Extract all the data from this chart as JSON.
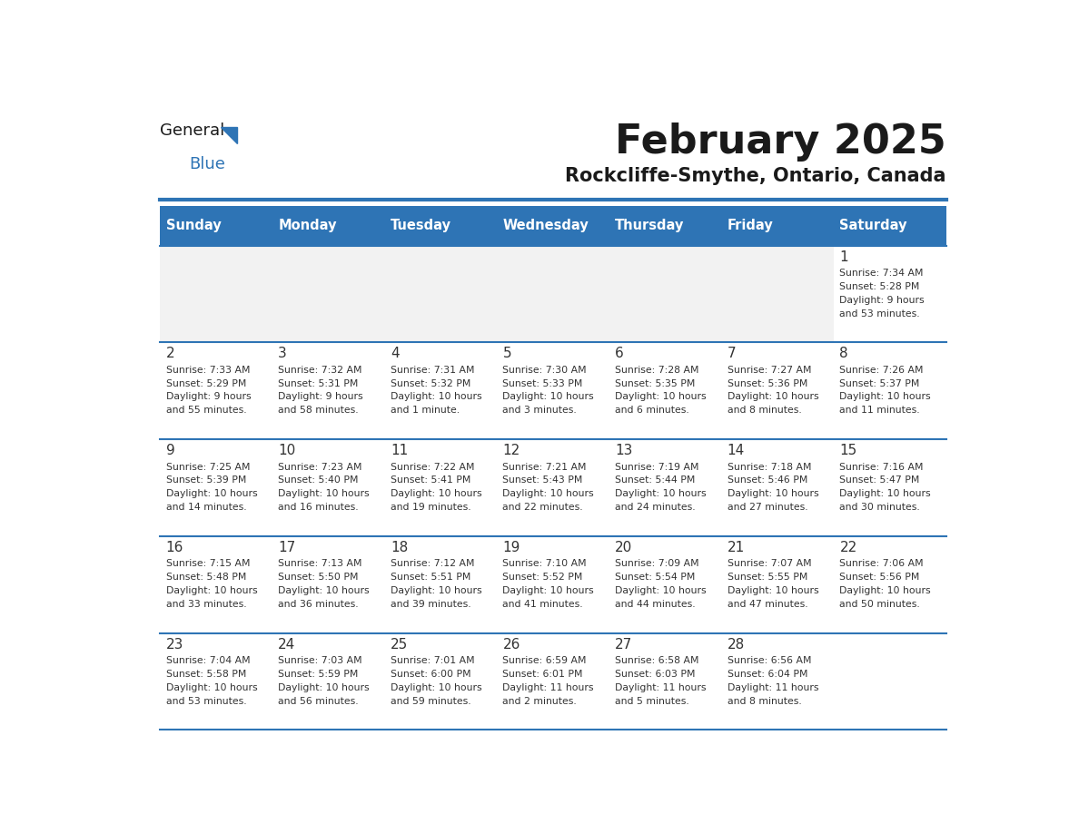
{
  "title": "February 2025",
  "subtitle": "Rockcliffe-Smythe, Ontario, Canada",
  "header_bg": "#2E74B5",
  "header_text": "#FFFFFF",
  "day_headers": [
    "Sunday",
    "Monday",
    "Tuesday",
    "Wednesday",
    "Thursday",
    "Friday",
    "Saturday"
  ],
  "cell_bg_empty": "#F2F2F2",
  "cell_bg_normal": "#FFFFFF",
  "grid_line_color": "#2E74B5",
  "text_color": "#333333",
  "logo_general_color": "#1a1a1a",
  "logo_blue_color": "#2E74B5",
  "calendar_data": [
    [
      {
        "day": null
      },
      {
        "day": null
      },
      {
        "day": null
      },
      {
        "day": null
      },
      {
        "day": null
      },
      {
        "day": null
      },
      {
        "day": 1,
        "sunrise": "7:34 AM",
        "sunset": "5:28 PM",
        "daylight_line1": "9 hours",
        "daylight_line2": "and 53 minutes."
      }
    ],
    [
      {
        "day": 2,
        "sunrise": "7:33 AM",
        "sunset": "5:29 PM",
        "daylight_line1": "9 hours",
        "daylight_line2": "and 55 minutes."
      },
      {
        "day": 3,
        "sunrise": "7:32 AM",
        "sunset": "5:31 PM",
        "daylight_line1": "9 hours",
        "daylight_line2": "and 58 minutes."
      },
      {
        "day": 4,
        "sunrise": "7:31 AM",
        "sunset": "5:32 PM",
        "daylight_line1": "10 hours",
        "daylight_line2": "and 1 minute."
      },
      {
        "day": 5,
        "sunrise": "7:30 AM",
        "sunset": "5:33 PM",
        "daylight_line1": "10 hours",
        "daylight_line2": "and 3 minutes."
      },
      {
        "day": 6,
        "sunrise": "7:28 AM",
        "sunset": "5:35 PM",
        "daylight_line1": "10 hours",
        "daylight_line2": "and 6 minutes."
      },
      {
        "day": 7,
        "sunrise": "7:27 AM",
        "sunset": "5:36 PM",
        "daylight_line1": "10 hours",
        "daylight_line2": "and 8 minutes."
      },
      {
        "day": 8,
        "sunrise": "7:26 AM",
        "sunset": "5:37 PM",
        "daylight_line1": "10 hours",
        "daylight_line2": "and 11 minutes."
      }
    ],
    [
      {
        "day": 9,
        "sunrise": "7:25 AM",
        "sunset": "5:39 PM",
        "daylight_line1": "10 hours",
        "daylight_line2": "and 14 minutes."
      },
      {
        "day": 10,
        "sunrise": "7:23 AM",
        "sunset": "5:40 PM",
        "daylight_line1": "10 hours",
        "daylight_line2": "and 16 minutes."
      },
      {
        "day": 11,
        "sunrise": "7:22 AM",
        "sunset": "5:41 PM",
        "daylight_line1": "10 hours",
        "daylight_line2": "and 19 minutes."
      },
      {
        "day": 12,
        "sunrise": "7:21 AM",
        "sunset": "5:43 PM",
        "daylight_line1": "10 hours",
        "daylight_line2": "and 22 minutes."
      },
      {
        "day": 13,
        "sunrise": "7:19 AM",
        "sunset": "5:44 PM",
        "daylight_line1": "10 hours",
        "daylight_line2": "and 24 minutes."
      },
      {
        "day": 14,
        "sunrise": "7:18 AM",
        "sunset": "5:46 PM",
        "daylight_line1": "10 hours",
        "daylight_line2": "and 27 minutes."
      },
      {
        "day": 15,
        "sunrise": "7:16 AM",
        "sunset": "5:47 PM",
        "daylight_line1": "10 hours",
        "daylight_line2": "and 30 minutes."
      }
    ],
    [
      {
        "day": 16,
        "sunrise": "7:15 AM",
        "sunset": "5:48 PM",
        "daylight_line1": "10 hours",
        "daylight_line2": "and 33 minutes."
      },
      {
        "day": 17,
        "sunrise": "7:13 AM",
        "sunset": "5:50 PM",
        "daylight_line1": "10 hours",
        "daylight_line2": "and 36 minutes."
      },
      {
        "day": 18,
        "sunrise": "7:12 AM",
        "sunset": "5:51 PM",
        "daylight_line1": "10 hours",
        "daylight_line2": "and 39 minutes."
      },
      {
        "day": 19,
        "sunrise": "7:10 AM",
        "sunset": "5:52 PM",
        "daylight_line1": "10 hours",
        "daylight_line2": "and 41 minutes."
      },
      {
        "day": 20,
        "sunrise": "7:09 AM",
        "sunset": "5:54 PM",
        "daylight_line1": "10 hours",
        "daylight_line2": "and 44 minutes."
      },
      {
        "day": 21,
        "sunrise": "7:07 AM",
        "sunset": "5:55 PM",
        "daylight_line1": "10 hours",
        "daylight_line2": "and 47 minutes."
      },
      {
        "day": 22,
        "sunrise": "7:06 AM",
        "sunset": "5:56 PM",
        "daylight_line1": "10 hours",
        "daylight_line2": "and 50 minutes."
      }
    ],
    [
      {
        "day": 23,
        "sunrise": "7:04 AM",
        "sunset": "5:58 PM",
        "daylight_line1": "10 hours",
        "daylight_line2": "and 53 minutes."
      },
      {
        "day": 24,
        "sunrise": "7:03 AM",
        "sunset": "5:59 PM",
        "daylight_line1": "10 hours",
        "daylight_line2": "and 56 minutes."
      },
      {
        "day": 25,
        "sunrise": "7:01 AM",
        "sunset": "6:00 PM",
        "daylight_line1": "10 hours",
        "daylight_line2": "and 59 minutes."
      },
      {
        "day": 26,
        "sunrise": "6:59 AM",
        "sunset": "6:01 PM",
        "daylight_line1": "11 hours",
        "daylight_line2": "and 2 minutes."
      },
      {
        "day": 27,
        "sunrise": "6:58 AM",
        "sunset": "6:03 PM",
        "daylight_line1": "11 hours",
        "daylight_line2": "and 5 minutes."
      },
      {
        "day": 28,
        "sunrise": "6:56 AM",
        "sunset": "6:04 PM",
        "daylight_line1": "11 hours",
        "daylight_line2": "and 8 minutes."
      },
      {
        "day": null
      }
    ]
  ]
}
